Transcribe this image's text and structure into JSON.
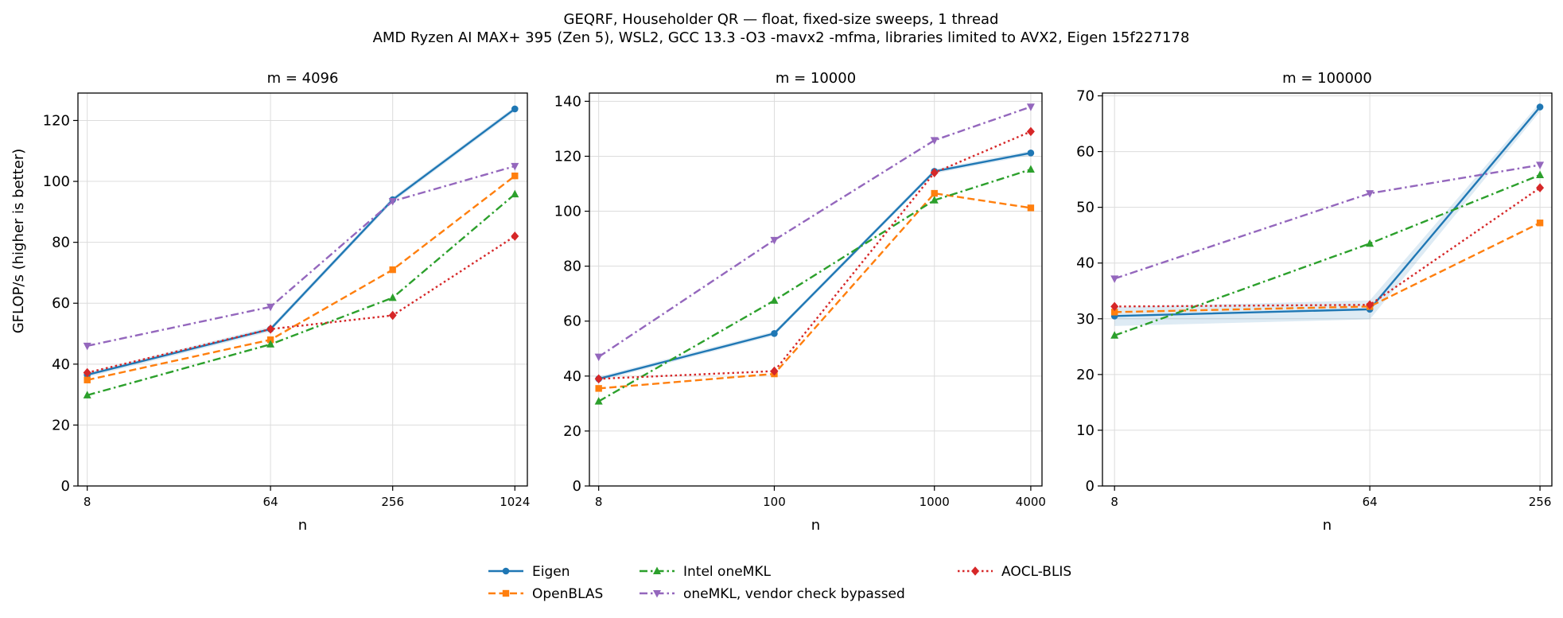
{
  "title_line1": "GEQRF, Householder QR — float, fixed-size sweeps, 1 thread",
  "title_line2": "AMD Ryzen AI MAX+ 395 (Zen 5), WSL2, GCC 13.3 -O3 -mavx2 -mfma, libraries limited to AVX2, Eigen 15f227178",
  "ylabel": "GFLOP/s (higher is better)",
  "series_styles": [
    {
      "name": "Eigen",
      "color": "#1f77b4",
      "marker": "circle",
      "dash": "solid"
    },
    {
      "name": "OpenBLAS",
      "color": "#ff7f0e",
      "marker": "square",
      "dash": "dashed"
    },
    {
      "name": "Intel oneMKL",
      "color": "#2ca02c",
      "marker": "triangle-up",
      "dash": "dashdot"
    },
    {
      "name": "oneMKL, vendor check bypassed",
      "color": "#9467bd",
      "marker": "triangle-down",
      "dash": "dashdot"
    },
    {
      "name": "AOCL-BLIS",
      "color": "#d62728",
      "marker": "diamond",
      "dash": "dotted"
    }
  ],
  "chart_data": [
    {
      "type": "line",
      "title": "m = 4096",
      "xlabel": "n",
      "ylabel": "GFLOP/s (higher is better)",
      "x_scale": "log",
      "x": [
        8,
        64,
        256,
        1024
      ],
      "x_tick_labels": [
        "8",
        "64",
        "256",
        "1024"
      ],
      "xlim": [
        7.2,
        1180
      ],
      "ylim": [
        0,
        129
      ],
      "y_ticks": [
        0,
        20,
        40,
        60,
        80,
        100,
        120
      ],
      "grid": true,
      "series": [
        {
          "name": "Eigen",
          "values": [
            36.5,
            51.5,
            94,
            123.8
          ]
        },
        {
          "name": "OpenBLAS",
          "values": [
            34.8,
            48,
            71,
            101.8
          ]
        },
        {
          "name": "Intel oneMKL",
          "values": [
            29.8,
            46.5,
            61.8,
            95.8
          ]
        },
        {
          "name": "oneMKL, vendor check bypassed",
          "values": [
            46,
            58.8,
            93.5,
            105
          ]
        },
        {
          "name": "AOCL-BLIS",
          "values": [
            37.2,
            51.5,
            56,
            82
          ]
        }
      ]
    },
    {
      "type": "line",
      "title": "m = 10000",
      "xlabel": "n",
      "x_scale": "log",
      "x": [
        8,
        100,
        1000,
        4000
      ],
      "x_tick_labels": [
        "8",
        "100",
        "1000",
        "4000"
      ],
      "xlim": [
        7.0,
        4700
      ],
      "ylim": [
        0,
        143
      ],
      "y_ticks": [
        0,
        20,
        40,
        60,
        80,
        100,
        120,
        140
      ],
      "grid": true,
      "series": [
        {
          "name": "Eigen",
          "values": [
            39,
            55.5,
            114.5,
            121.2
          ]
        },
        {
          "name": "OpenBLAS",
          "values": [
            35.5,
            40.8,
            106.5,
            101.2
          ]
        },
        {
          "name": "Intel oneMKL",
          "values": [
            30.8,
            67.5,
            104,
            115.2
          ]
        },
        {
          "name": "oneMKL, vendor check bypassed",
          "values": [
            47,
            89.5,
            125.8,
            138
          ]
        },
        {
          "name": "AOCL-BLIS",
          "values": [
            39,
            41.8,
            114,
            129
          ]
        }
      ]
    },
    {
      "type": "line",
      "title": "m = 100000",
      "xlabel": "n",
      "x_scale": "log",
      "x": [
        8,
        64,
        256
      ],
      "x_tick_labels": [
        "8",
        "64",
        "256"
      ],
      "xlim": [
        7.25,
        282
      ],
      "ylim": [
        0,
        70.5
      ],
      "y_ticks": [
        0,
        10,
        20,
        30,
        40,
        50,
        60,
        70
      ],
      "grid": true,
      "series": [
        {
          "name": "Eigen",
          "values": [
            30.5,
            31.7,
            68
          ]
        },
        {
          "name": "OpenBLAS",
          "values": [
            31.2,
            32.2,
            47.2
          ]
        },
        {
          "name": "Intel oneMKL",
          "values": [
            27,
            43.5,
            55.8
          ]
        },
        {
          "name": "oneMKL, vendor check bypassed",
          "values": [
            37.2,
            52.5,
            57.6
          ]
        },
        {
          "name": "AOCL-BLIS",
          "values": [
            32.2,
            32.5,
            53.5
          ]
        }
      ]
    }
  ]
}
